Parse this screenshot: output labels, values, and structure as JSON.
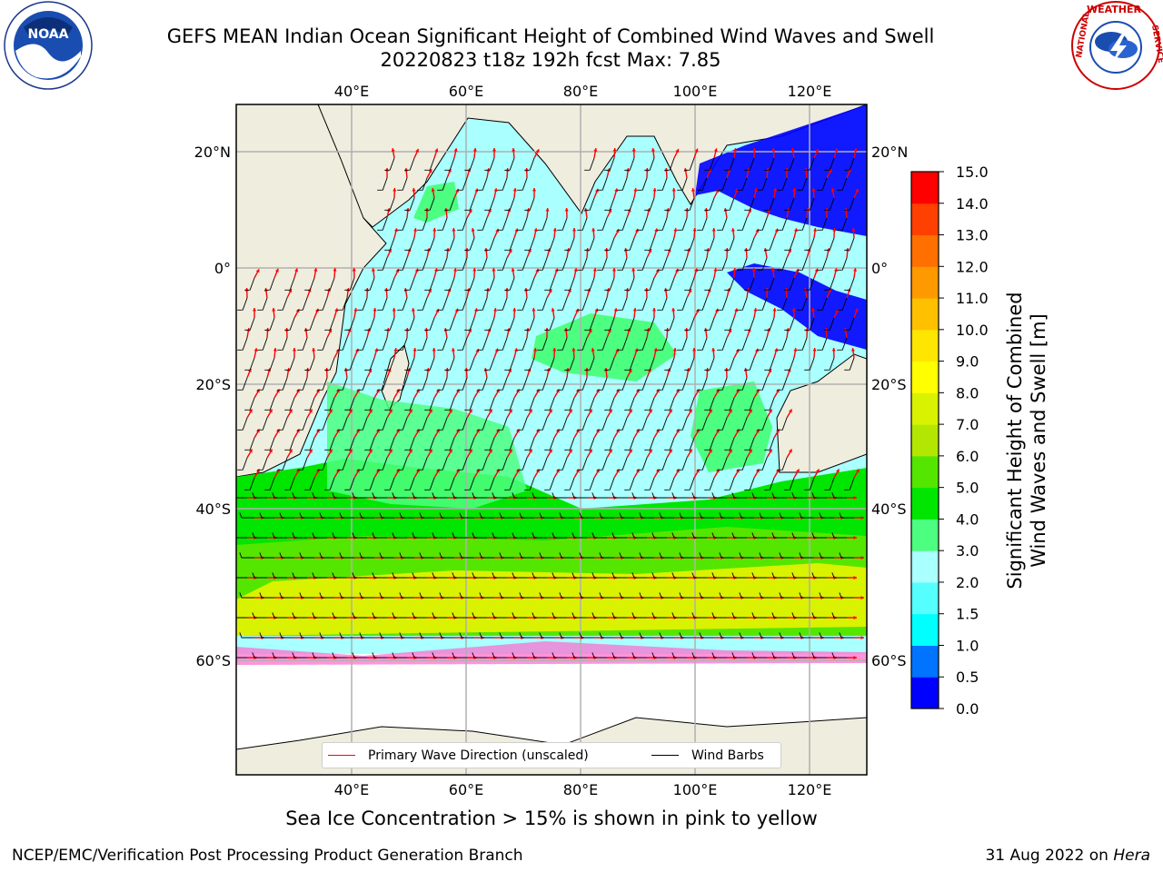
{
  "title_line1": "GEFS MEAN Indian Ocean Significant Height of Combined Wind Waves and Swell",
  "title_line2": "20220823 t18z 192h fcst   Max: 7.85",
  "map": {
    "lon_ticks": [
      "40°E",
      "60°E",
      "80°E",
      "100°E",
      "120°E"
    ],
    "lat_ticks": [
      "20°N",
      "0°",
      "20°S",
      "40°S",
      "60°S"
    ],
    "colors": {
      "land": "#efedde",
      "ocean_low": "#aaffff",
      "wave_dir": "#ff0000",
      "barbs": "#000000"
    }
  },
  "legend": {
    "wave_direction": "Primary Wave Direction (unscaled)",
    "wind_barbs": "Wind Barbs"
  },
  "colorbar": {
    "title_line1": "Significant Height of Combined",
    "title_line2": "Wind Waves and Swell [m]",
    "ticks": [
      "0.0",
      "0.5",
      "1.0",
      "1.5",
      "2.0",
      "3.0",
      "4.0",
      "5.0",
      "6.0",
      "7.0",
      "8.0",
      "9.0",
      "10.0",
      "11.0",
      "12.0",
      "13.0",
      "14.0",
      "15.0"
    ],
    "colors": [
      "#0000ff",
      "#0073ff",
      "#00ffff",
      "#55ffff",
      "#aaffff",
      "#4dff80",
      "#00e600",
      "#55e600",
      "#b3e600",
      "#d9f200",
      "#ffff00",
      "#ffe600",
      "#ffc000",
      "#ff9900",
      "#ff7000",
      "#ff4000",
      "#ff0000"
    ]
  },
  "subnote": "Sea Ice Concentration > 15% is shown in pink to yellow",
  "footer_left": "NCEP/EMC/Verification Post Processing Product Generation Branch",
  "footer_right_date": "31 Aug 2022 on",
  "footer_right_host": "Hera",
  "logos": {
    "left": "NOAA",
    "right_top": "WEATHER",
    "right_left": "NATIONAL",
    "right_right": "SERVICE"
  }
}
